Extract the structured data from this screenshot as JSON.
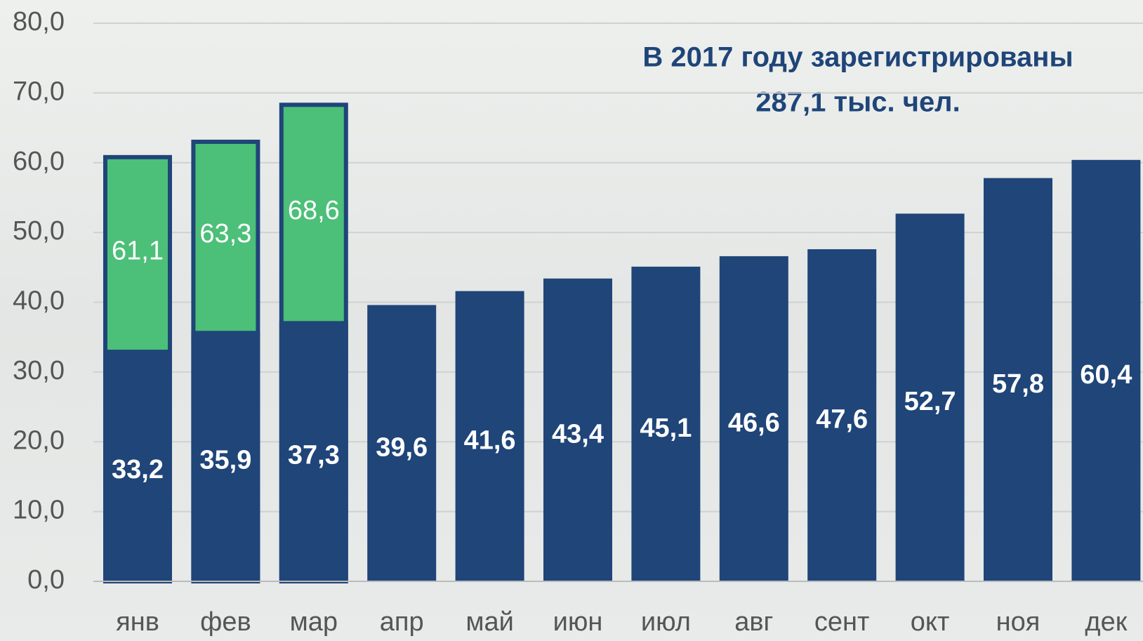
{
  "chart_data": {
    "type": "bar",
    "title": "В 2017 году зарегистрированы",
    "subtitle": "287,1 тыс. чел.",
    "categories": [
      "янв",
      "фев",
      "мар",
      "апр",
      "май",
      "июн",
      "июл",
      "авг",
      "сент",
      "окт",
      "ноя",
      "дек"
    ],
    "series": [
      {
        "color": "#4cbf78",
        "values": [
          61.1,
          63.3,
          68.6,
          null,
          null,
          null,
          null,
          null,
          null,
          null,
          null,
          null
        ],
        "value_labels": [
          "61,1",
          "63,3",
          "68,6",
          null,
          null,
          null,
          null,
          null,
          null,
          null,
          null,
          null
        ]
      },
      {
        "color": "#1f4579",
        "values": [
          33.2,
          35.9,
          37.3,
          39.6,
          41.6,
          43.4,
          45.1,
          46.6,
          47.6,
          52.7,
          57.8,
          60.4
        ],
        "value_labels": [
          "33,2",
          "35,9",
          "37,3",
          "39,6",
          "41,6",
          "43,4",
          "45,1",
          "46,6",
          "47,6",
          "52,7",
          "57,8",
          "60,4"
        ]
      }
    ],
    "ylim": [
      0,
      80
    ],
    "yticks": [
      {
        "value": 0,
        "label": "0,0"
      },
      {
        "value": 10,
        "label": "10,0"
      },
      {
        "value": 20,
        "label": "20,0"
      },
      {
        "value": 30,
        "label": "30,0"
      },
      {
        "value": 40,
        "label": "40,0"
      },
      {
        "value": 50,
        "label": "50,0"
      },
      {
        "value": 60,
        "label": "60,0"
      },
      {
        "value": 70,
        "label": "70,0"
      },
      {
        "value": 80,
        "label": "80,0"
      }
    ],
    "grid": true
  }
}
